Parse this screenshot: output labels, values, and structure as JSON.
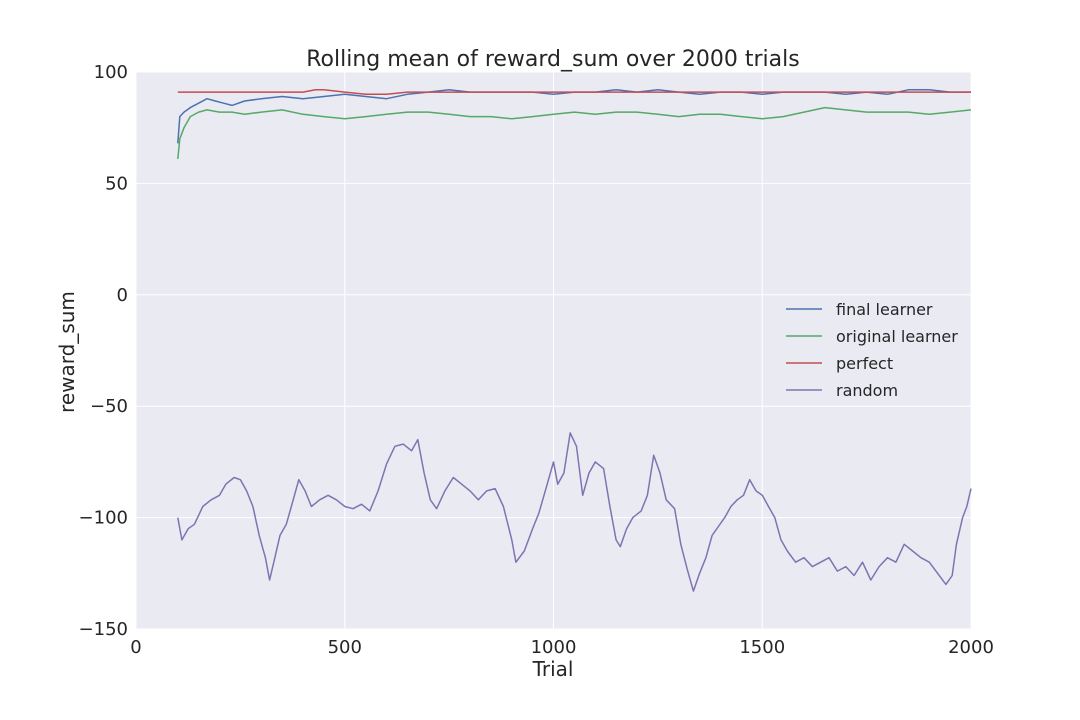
{
  "chart_data": {
    "type": "line",
    "title": "Rolling mean of reward_sum over 2000 trials",
    "xlabel": "Trial",
    "ylabel": "reward_sum",
    "xlim": [
      0,
      2000
    ],
    "ylim": [
      -150,
      100
    ],
    "xticks": [
      0,
      500,
      1000,
      1500,
      2000
    ],
    "yticks": [
      -150,
      -100,
      -50,
      0,
      50,
      100
    ],
    "grid": true,
    "legend_position": "center-right",
    "background_color": "#eaeaf2",
    "series": [
      {
        "name": "final learner",
        "color": "#4c72b0",
        "points": [
          [
            100,
            68
          ],
          [
            105,
            80
          ],
          [
            115,
            82
          ],
          [
            130,
            84
          ],
          [
            150,
            86
          ],
          [
            170,
            88
          ],
          [
            190,
            87
          ],
          [
            210,
            86
          ],
          [
            230,
            85
          ],
          [
            260,
            87
          ],
          [
            300,
            88
          ],
          [
            350,
            89
          ],
          [
            400,
            88
          ],
          [
            450,
            89
          ],
          [
            500,
            90
          ],
          [
            550,
            89
          ],
          [
            600,
            88
          ],
          [
            650,
            90
          ],
          [
            700,
            91
          ],
          [
            750,
            92
          ],
          [
            800,
            91
          ],
          [
            850,
            91
          ],
          [
            900,
            91
          ],
          [
            950,
            91
          ],
          [
            1000,
            90
          ],
          [
            1050,
            91
          ],
          [
            1100,
            91
          ],
          [
            1150,
            92
          ],
          [
            1200,
            91
          ],
          [
            1250,
            92
          ],
          [
            1300,
            91
          ],
          [
            1350,
            90
          ],
          [
            1400,
            91
          ],
          [
            1450,
            91
          ],
          [
            1500,
            90
          ],
          [
            1550,
            91
          ],
          [
            1600,
            91
          ],
          [
            1650,
            91
          ],
          [
            1700,
            90
          ],
          [
            1750,
            91
          ],
          [
            1800,
            90
          ],
          [
            1850,
            92
          ],
          [
            1900,
            92
          ],
          [
            1950,
            91
          ],
          [
            2000,
            91
          ]
        ]
      },
      {
        "name": "original learner",
        "color": "#55a868",
        "points": [
          [
            100,
            61
          ],
          [
            105,
            70
          ],
          [
            115,
            75
          ],
          [
            130,
            80
          ],
          [
            150,
            82
          ],
          [
            170,
            83
          ],
          [
            200,
            82
          ],
          [
            230,
            82
          ],
          [
            260,
            81
          ],
          [
            300,
            82
          ],
          [
            350,
            83
          ],
          [
            400,
            81
          ],
          [
            450,
            80
          ],
          [
            500,
            79
          ],
          [
            550,
            80
          ],
          [
            600,
            81
          ],
          [
            650,
            82
          ],
          [
            700,
            82
          ],
          [
            750,
            81
          ],
          [
            800,
            80
          ],
          [
            850,
            80
          ],
          [
            900,
            79
          ],
          [
            950,
            80
          ],
          [
            1000,
            81
          ],
          [
            1050,
            82
          ],
          [
            1100,
            81
          ],
          [
            1150,
            82
          ],
          [
            1200,
            82
          ],
          [
            1250,
            81
          ],
          [
            1300,
            80
          ],
          [
            1350,
            81
          ],
          [
            1400,
            81
          ],
          [
            1450,
            80
          ],
          [
            1500,
            79
          ],
          [
            1550,
            80
          ],
          [
            1600,
            82
          ],
          [
            1650,
            84
          ],
          [
            1700,
            83
          ],
          [
            1750,
            82
          ],
          [
            1800,
            82
          ],
          [
            1850,
            82
          ],
          [
            1900,
            81
          ],
          [
            1950,
            82
          ],
          [
            2000,
            83
          ]
        ]
      },
      {
        "name": "perfect",
        "color": "#c44e52",
        "points": [
          [
            100,
            91
          ],
          [
            150,
            91
          ],
          [
            200,
            91
          ],
          [
            250,
            91
          ],
          [
            300,
            91
          ],
          [
            350,
            91
          ],
          [
            400,
            91
          ],
          [
            430,
            92
          ],
          [
            450,
            92
          ],
          [
            500,
            91
          ],
          [
            550,
            90
          ],
          [
            600,
            90
          ],
          [
            650,
            91
          ],
          [
            700,
            91
          ],
          [
            750,
            91
          ],
          [
            800,
            91
          ],
          [
            850,
            91
          ],
          [
            900,
            91
          ],
          [
            950,
            91
          ],
          [
            1000,
            91
          ],
          [
            1050,
            91
          ],
          [
            1100,
            91
          ],
          [
            1150,
            91
          ],
          [
            1200,
            91
          ],
          [
            1250,
            91
          ],
          [
            1300,
            91
          ],
          [
            1350,
            91
          ],
          [
            1400,
            91
          ],
          [
            1450,
            91
          ],
          [
            1500,
            91
          ],
          [
            1550,
            91
          ],
          [
            1600,
            91
          ],
          [
            1650,
            91
          ],
          [
            1700,
            91
          ],
          [
            1750,
            91
          ],
          [
            1800,
            91
          ],
          [
            1850,
            91
          ],
          [
            1900,
            91
          ],
          [
            1950,
            91
          ],
          [
            2000,
            91
          ]
        ]
      },
      {
        "name": "random",
        "color": "#8172b2",
        "points": [
          [
            100,
            -100
          ],
          [
            110,
            -110
          ],
          [
            125,
            -105
          ],
          [
            140,
            -103
          ],
          [
            160,
            -95
          ],
          [
            180,
            -92
          ],
          [
            200,
            -90
          ],
          [
            215,
            -85
          ],
          [
            235,
            -82
          ],
          [
            250,
            -83
          ],
          [
            265,
            -88
          ],
          [
            280,
            -95
          ],
          [
            295,
            -108
          ],
          [
            310,
            -118
          ],
          [
            320,
            -128
          ],
          [
            330,
            -120
          ],
          [
            345,
            -108
          ],
          [
            360,
            -103
          ],
          [
            375,
            -93
          ],
          [
            390,
            -83
          ],
          [
            405,
            -88
          ],
          [
            420,
            -95
          ],
          [
            440,
            -92
          ],
          [
            460,
            -90
          ],
          [
            480,
            -92
          ],
          [
            500,
            -95
          ],
          [
            520,
            -96
          ],
          [
            540,
            -94
          ],
          [
            560,
            -97
          ],
          [
            580,
            -88
          ],
          [
            600,
            -76
          ],
          [
            620,
            -68
          ],
          [
            640,
            -67
          ],
          [
            660,
            -70
          ],
          [
            675,
            -65
          ],
          [
            690,
            -80
          ],
          [
            705,
            -92
          ],
          [
            720,
            -96
          ],
          [
            740,
            -88
          ],
          [
            760,
            -82
          ],
          [
            780,
            -85
          ],
          [
            800,
            -88
          ],
          [
            820,
            -92
          ],
          [
            840,
            -88
          ],
          [
            860,
            -87
          ],
          [
            880,
            -95
          ],
          [
            900,
            -110
          ],
          [
            910,
            -120
          ],
          [
            930,
            -115
          ],
          [
            950,
            -105
          ],
          [
            965,
            -98
          ],
          [
            985,
            -85
          ],
          [
            1000,
            -75
          ],
          [
            1010,
            -85
          ],
          [
            1025,
            -80
          ],
          [
            1040,
            -62
          ],
          [
            1055,
            -68
          ],
          [
            1070,
            -90
          ],
          [
            1085,
            -80
          ],
          [
            1100,
            -75
          ],
          [
            1120,
            -78
          ],
          [
            1135,
            -95
          ],
          [
            1150,
            -110
          ],
          [
            1160,
            -113
          ],
          [
            1175,
            -105
          ],
          [
            1190,
            -100
          ],
          [
            1210,
            -97
          ],
          [
            1225,
            -90
          ],
          [
            1240,
            -72
          ],
          [
            1255,
            -80
          ],
          [
            1270,
            -92
          ],
          [
            1290,
            -96
          ],
          [
            1305,
            -112
          ],
          [
            1320,
            -123
          ],
          [
            1335,
            -133
          ],
          [
            1350,
            -125
          ],
          [
            1365,
            -118
          ],
          [
            1380,
            -108
          ],
          [
            1395,
            -104
          ],
          [
            1410,
            -100
          ],
          [
            1425,
            -95
          ],
          [
            1440,
            -92
          ],
          [
            1455,
            -90
          ],
          [
            1470,
            -83
          ],
          [
            1485,
            -88
          ],
          [
            1500,
            -90
          ],
          [
            1515,
            -95
          ],
          [
            1530,
            -100
          ],
          [
            1545,
            -110
          ],
          [
            1560,
            -115
          ],
          [
            1580,
            -120
          ],
          [
            1600,
            -118
          ],
          [
            1620,
            -122
          ],
          [
            1640,
            -120
          ],
          [
            1660,
            -118
          ],
          [
            1680,
            -124
          ],
          [
            1700,
            -122
          ],
          [
            1720,
            -126
          ],
          [
            1740,
            -120
          ],
          [
            1760,
            -128
          ],
          [
            1780,
            -122
          ],
          [
            1800,
            -118
          ],
          [
            1820,
            -120
          ],
          [
            1840,
            -112
          ],
          [
            1860,
            -115
          ],
          [
            1880,
            -118
          ],
          [
            1900,
            -120
          ],
          [
            1920,
            -125
          ],
          [
            1940,
            -130
          ],
          [
            1955,
            -126
          ],
          [
            1965,
            -112
          ],
          [
            1980,
            -100
          ],
          [
            1990,
            -95
          ],
          [
            2000,
            -87
          ]
        ]
      }
    ]
  }
}
